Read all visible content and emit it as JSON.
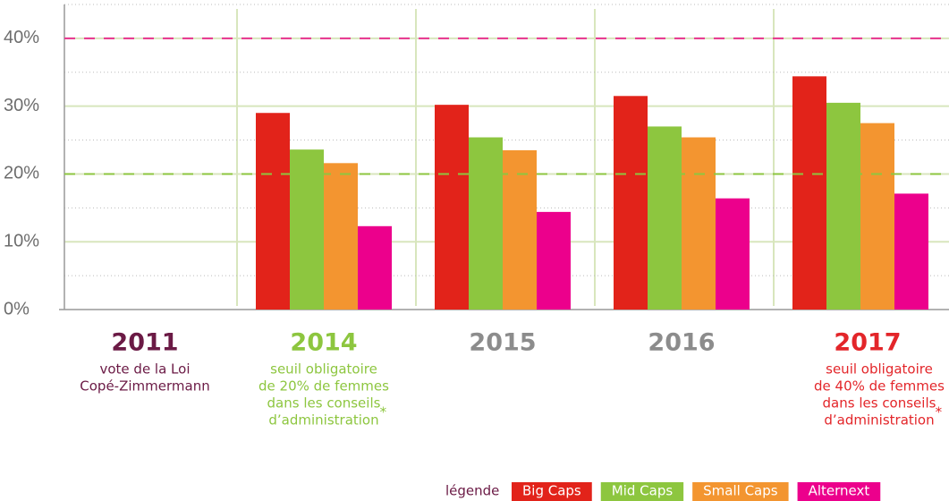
{
  "chart_data": {
    "type": "bar",
    "categories": [
      "2011",
      "2014",
      "2015",
      "2016",
      "2017"
    ],
    "category_colors": [
      "#6b1a45",
      "#8dc63f",
      "#8c8c8c",
      "#8c8c8c",
      "#e3262a"
    ],
    "notes": [
      {
        "lines": [
          "vote de la Loi",
          "Copé-Zimmermann"
        ],
        "color": "#6b1a45"
      },
      {
        "lines": [
          "seuil obligatoire",
          "de 20% de femmes",
          "dans les conseils",
          "d’administration"
        ],
        "footnote_mark": "*",
        "color": "#8dc63f"
      },
      null,
      null,
      {
        "lines": [
          "seuil obligatoire",
          "de 40% de femmes",
          "dans les conseils",
          "d’administration"
        ],
        "footnote_mark": "*",
        "color": "#e3262a"
      }
    ],
    "series": [
      {
        "name": "Big Caps",
        "color": "#e2231a",
        "values": [
          null,
          29,
          30.2,
          31.5,
          34.4
        ]
      },
      {
        "name": "Mid Caps",
        "color": "#8dc63f",
        "values": [
          null,
          23.6,
          25.4,
          27,
          30.5
        ]
      },
      {
        "name": "Small Caps",
        "color": "#f39530",
        "values": [
          null,
          21.6,
          23.5,
          25.4,
          27.5
        ]
      },
      {
        "name": "Alternext",
        "color": "#ec008c",
        "values": [
          null,
          12.3,
          14.4,
          16.4,
          17.1
        ]
      }
    ],
    "ylim": [
      0,
      45
    ],
    "yticks": [
      {
        "value": 0,
        "label": "0%"
      },
      {
        "value": 10,
        "label": "10%"
      },
      {
        "value": 20,
        "label": "20%"
      },
      {
        "value": 30,
        "label": "30%"
      },
      {
        "value": 40,
        "label": "40%"
      }
    ],
    "yminor": [
      5,
      15,
      25,
      35,
      45
    ],
    "reference_lines": [
      {
        "value": 40,
        "color": "#e8338f"
      },
      {
        "value": 20,
        "color": "#8dc63f"
      }
    ],
    "legend_title": "légende",
    "legend": "bottom-right",
    "grid": true
  }
}
